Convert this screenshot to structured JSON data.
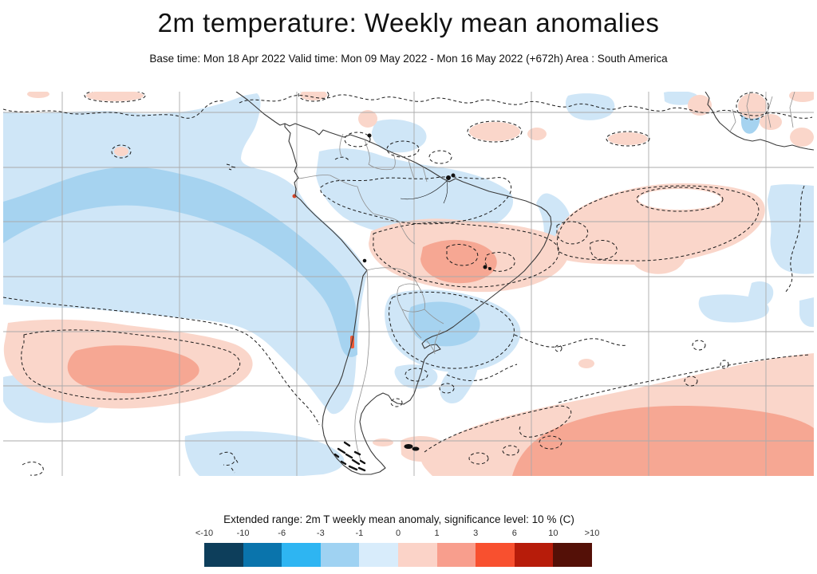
{
  "header": {
    "title": "2m temperature: Weekly mean anomalies",
    "subtitle": "Base time: Mon 18 Apr 2022 Valid time: Mon 09 May 2022 - Mon 16 May 2022 (+672h) Area : South America"
  },
  "legend": {
    "title": "Extended range: 2m T weekly mean anomaly, significance level: 10 % (C)",
    "ticks": [
      "<-10",
      "-10",
      "-6",
      "-3",
      "-1",
      "0",
      "1",
      "3",
      "6",
      "10",
      ">10"
    ],
    "colors": [
      "#0d3e5b",
      "#0a74ac",
      "#2eb5f2",
      "#9fd2f2",
      "#d8ecfb",
      "#fbd3c8",
      "#f89e8d",
      "#f8502f",
      "#b71c0a",
      "#541007"
    ]
  },
  "map": {
    "area": "South America",
    "anomaly_fill_colors": {
      "negative_weak": "#cfe6f7",
      "negative_moderate": "#a6d3f0",
      "positive_weak": "#fad6ca",
      "positive_moderate": "#f6a793",
      "positive_strong": "#ef5a38"
    },
    "gridline_color": "#ababab",
    "contour_style": "dashed significance contours",
    "coastline_color": "#3a3a3a"
  }
}
